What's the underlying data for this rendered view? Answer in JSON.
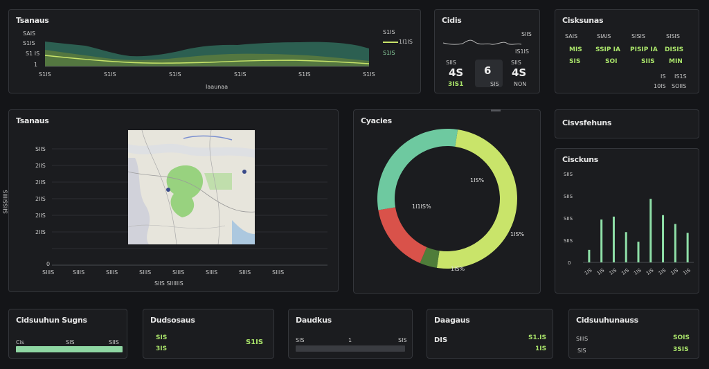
{
  "colors": {
    "bg": "#141518",
    "panel": "#1b1c1f",
    "border": "#34363b",
    "teal": "#6ec9a0",
    "lime": "#c9e46a",
    "red": "#d9524a",
    "green": "#4f7d3a"
  },
  "area_panel": {
    "title": "Tsanaus",
    "y_ticks": [
      "SAIS",
      "S1IS",
      "S1 IS",
      "1"
    ],
    "x_ticks": [
      "S1IS",
      "S1IS",
      "S1IS",
      "S1IS",
      "S1IS",
      "S1IS"
    ],
    "xlabel": "Iaaunaa",
    "legend": [
      "S1IS",
      "1I1IS",
      "S1IS"
    ]
  },
  "stat_panel": {
    "title": "Cidis",
    "spark_labels": [
      "SIIS",
      "IS1IS"
    ],
    "cells": [
      {
        "label": "SIIS",
        "value": "4S",
        "sub": "3IS1"
      },
      {
        "label": "",
        "value": "6",
        "sub": "SIS"
      },
      {
        "label": "SIIS",
        "value": "4S",
        "sub": "NON"
      }
    ]
  },
  "table_panel": {
    "title": "Cisksunas",
    "headers": [
      "SAIS",
      "SIAIS",
      "SISIS",
      "SISIS"
    ],
    "row1": [
      "MIS",
      "SSIP IA",
      "PISIP IA",
      "DISIS"
    ],
    "row2": [
      "SIS",
      "SOI",
      "SIIS",
      "MIN"
    ],
    "extra": [
      "IS",
      "IS1S",
      "10IS",
      "SOIIS"
    ]
  },
  "map_panel": {
    "title": "Tsanaus",
    "y_ticks": [
      "SIIS",
      "2IIS",
      "2IIS",
      "2IIS",
      "2IIS",
      "2IIS",
      "0"
    ],
    "x_ticks": [
      "SIIIS",
      "SIIIS",
      "SIIIS",
      "SIIIS",
      "SIIIS",
      "SIIIS",
      "SIIIS",
      "SIIIS"
    ],
    "xlabel": "SIIS SIIIIIIS",
    "ylabel": "SIISSIIIIS"
  },
  "donut_panel": {
    "title": "Cyacies"
  },
  "chart_data": [
    {
      "type": "pie",
      "title": "Cyacies",
      "slices": [
        {
          "label": "1IS%",
          "value": 50
        },
        {
          "label": "1IS%",
          "value": 4
        },
        {
          "label": "1IS%",
          "value": 16
        },
        {
          "label": "1I1IS%",
          "value": 30
        }
      ],
      "colors": [
        "#c9e46a",
        "#4f7d3a",
        "#d9524a",
        "#6ec9a0"
      ]
    },
    {
      "type": "bar",
      "title": "Cisckuns",
      "categories": [
        "1IS",
        "1IS",
        "1IS",
        "1IS",
        "1IS",
        "1IS",
        "1IS",
        "1IS",
        "1IS"
      ],
      "values": [
        17,
        58,
        62,
        41,
        28,
        86,
        64,
        52,
        40
      ],
      "y_ticks": [
        "SIIS",
        "SIIS",
        "SIIS",
        "SIIS",
        "0"
      ],
      "ylim": [
        0,
        120
      ]
    }
  ],
  "right_top": {
    "title": "Cisvsfehuns"
  },
  "bottom": [
    {
      "title": "Cidsuuhun Sugns",
      "left": "Cis",
      "mid": "SIS",
      "right": "SIIS",
      "fill": 1.0
    },
    {
      "title": "Dudsosaus",
      "small": "SIS",
      "value": "S1IS",
      "sub": "3IS"
    },
    {
      "title": "Daudkus",
      "left": "SIS",
      "mid": "1",
      "right": "SIS",
      "fill": 0.0
    },
    {
      "title": "Daagaus",
      "left": "DIS",
      "value": "S1.IS",
      "sub": "1IS"
    },
    {
      "title": "Cidsuuhunauss",
      "l1": "SIIIS",
      "v1": "SOIS",
      "l2": "SIS",
      "v2": "3SIS"
    }
  ]
}
